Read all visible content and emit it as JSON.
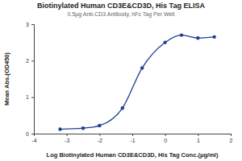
{
  "chart_data": {
    "type": "line",
    "title": "Biotinylated Human CD3E&CD3D, His Tag ELISA",
    "subtitle": "0.5μg Anti-CD3 Antibody, hFc Tag Per Well",
    "x_label": "Log Biotinylated Human CD3E&CD3D, His Tag Conc.(μg/ml)",
    "y_label": "Mean Abs.(OD450)",
    "x": [
      -3.2,
      -2.5,
      -2.0,
      -1.3,
      -0.7,
      0.0,
      0.5,
      1.0,
      1.5
    ],
    "values": [
      0.12,
      0.15,
      0.22,
      0.7,
      1.8,
      2.5,
      2.7,
      2.62,
      2.65
    ],
    "color": "#1f3f8f",
    "marker": "circle",
    "xlim": [
      -4,
      2
    ],
    "xticks": [
      -4,
      -3,
      -2,
      -1,
      0,
      1,
      2
    ],
    "ylim": [
      0,
      3
    ],
    "yticks": [
      0,
      1,
      2,
      3
    ],
    "grid": false
  }
}
